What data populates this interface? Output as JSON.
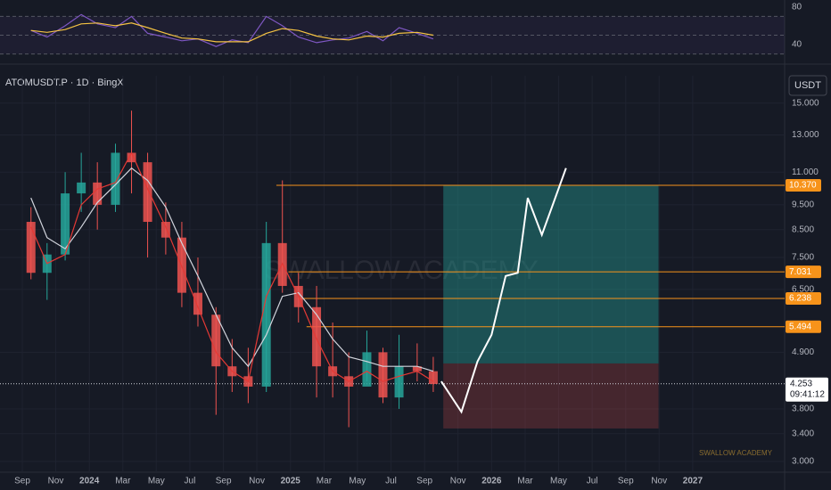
{
  "ui": {
    "symbol": "ATOMUSDT.P · 1D · BingX",
    "currency": "USDT",
    "watermark": "SWALLOW ACADEMY",
    "footer_brand": "SWALLOW ACADEMY",
    "countdown": "09:41:12"
  },
  "chart_data": [
    {
      "type": "candlestick",
      "log_scale": true,
      "grid": true,
      "xlim": [
        2023.556,
        2027.457
      ],
      "ylim": [
        2.86,
        16.96
      ],
      "x": [
        2023.71,
        2023.79,
        2023.88,
        2023.96,
        2024.04,
        2024.13,
        2024.21,
        2024.29,
        2024.38,
        2024.46,
        2024.54,
        2024.63,
        2024.71,
        2024.79,
        2024.88,
        2024.96,
        2025.04,
        2025.13,
        2025.21,
        2025.29,
        2025.38,
        2025.46,
        2025.54,
        2025.63,
        2025.71
      ],
      "open": [
        8.8,
        7.0,
        7.6,
        10.0,
        10.5,
        9.5,
        12.0,
        11.5,
        8.8,
        8.2,
        6.4,
        5.8,
        4.6,
        4.4,
        4.2,
        8.0,
        6.6,
        6.0,
        4.6,
        4.4,
        4.2,
        4.9,
        4.0,
        4.6,
        4.5
      ],
      "high": [
        9.4,
        8.0,
        11.0,
        12.0,
        11.5,
        12.5,
        14.5,
        12.0,
        9.6,
        8.8,
        7.5,
        6.0,
        5.2,
        5.0,
        8.8,
        10.6,
        7.0,
        6.6,
        5.6,
        4.9,
        5.4,
        5.0,
        5.3,
        5.1,
        4.8
      ],
      "low": [
        6.8,
        6.2,
        7.4,
        9.2,
        8.5,
        9.2,
        10.0,
        7.5,
        7.6,
        6.0,
        5.5,
        3.7,
        4.1,
        3.9,
        4.1,
        6.4,
        5.6,
        4.0,
        4.0,
        3.5,
        4.3,
        3.9,
        3.8,
        4.3,
        4.1
      ],
      "close": [
        7.0,
        7.6,
        10.0,
        10.5,
        9.5,
        12.0,
        11.5,
        8.8,
        8.2,
        6.4,
        5.8,
        4.6,
        4.4,
        4.2,
        8.0,
        6.6,
        6.0,
        4.6,
        4.4,
        4.2,
        4.9,
        4.0,
        4.6,
        4.5,
        4.25
      ],
      "up_color": "#26a69a",
      "down_color": "#ef5350",
      "moving_averages": [
        {
          "color": "#d1d4dc",
          "values": [
            9.8,
            8.2,
            7.8,
            8.6,
            9.6,
            10.4,
            11.2,
            10.6,
            9.4,
            8.0,
            6.9,
            5.8,
            5.0,
            4.6,
            5.3,
            6.3,
            6.4,
            5.8,
            5.2,
            4.8,
            4.7,
            4.6,
            4.6,
            4.6,
            4.5
          ]
        },
        {
          "color": "#e53935",
          "values": [
            8.6,
            7.3,
            7.6,
            9.5,
            10.2,
            10.5,
            12.0,
            10.2,
            8.6,
            7.2,
            6.0,
            4.9,
            4.5,
            4.3,
            6.3,
            7.3,
            6.3,
            5.2,
            4.5,
            4.3,
            4.5,
            4.3,
            4.4,
            4.5,
            4.3
          ]
        }
      ],
      "projection": {
        "color": "#ffffff",
        "x": [
          2025.75,
          2025.85,
          2025.93,
          2026.0,
          2026.07,
          2026.13,
          2026.18,
          2026.25,
          2026.3,
          2026.37
        ],
        "values": [
          4.3,
          3.75,
          4.7,
          5.3,
          6.9,
          7.0,
          9.8,
          8.3,
          9.4,
          11.2
        ]
      },
      "position": {
        "start": 2025.76,
        "end": 2026.83,
        "entry": 4.66,
        "target": 10.37,
        "stop": 3.48
      },
      "levels": [
        {
          "value": 10.37,
          "label": "10.370",
          "from": 2024.93
        },
        {
          "value": 7.031,
          "label": "7.031",
          "from": 2024.99
        },
        {
          "value": 6.238,
          "label": "6.238",
          "from": 2025.04
        },
        {
          "value": 5.494,
          "label": "5.494",
          "from": 2025.08
        }
      ],
      "last_price": 4.253,
      "yticks": [
        {
          "value": 15,
          "label": "15.000"
        },
        {
          "value": 13,
          "label": "13.000"
        },
        {
          "value": 11,
          "label": "11.000"
        },
        {
          "value": 9.5,
          "label": "9.500"
        },
        {
          "value": 8.5,
          "label": "8.500"
        },
        {
          "value": 7.5,
          "label": "7.500"
        },
        {
          "value": 6.5,
          "label": "6.500"
        },
        {
          "value": 4.9,
          "label": "4.900"
        },
        {
          "value": 3.8,
          "label": "3.800"
        },
        {
          "value": 3.4,
          "label": "3.400"
        },
        {
          "value": 3,
          "label": "3.000"
        }
      ],
      "xticks": [
        {
          "value": 2023.667,
          "label": "Sep"
        },
        {
          "value": 2023.833,
          "label": "Nov"
        },
        2024,
        {
          "value": 2024.167,
          "label": "Mar"
        },
        {
          "value": 2024.333,
          "label": "May"
        },
        {
          "value": 2024.5,
          "label": "Jul"
        },
        {
          "value": 2024.667,
          "label": "Sep"
        },
        {
          "value": 2024.833,
          "label": "Nov"
        },
        2025,
        {
          "value": 2025.167,
          "label": "Mar"
        },
        {
          "value": 2025.333,
          "label": "May"
        },
        {
          "value": 2025.5,
          "label": "Jul"
        },
        {
          "value": 2025.667,
          "label": "Sep"
        },
        {
          "value": 2025.833,
          "label": "Nov"
        },
        2026,
        {
          "value": 2026.167,
          "label": "Mar"
        },
        {
          "value": 2026.333,
          "label": "May"
        },
        {
          "value": 2026.5,
          "label": "Jul"
        },
        {
          "value": 2026.667,
          "label": "Sep"
        },
        {
          "value": 2026.833,
          "label": "Nov"
        },
        2027
      ]
    },
    {
      "type": "line",
      "xlim": [
        2023.556,
        2027.457
      ],
      "ylim": [
        23,
        87.4
      ],
      "yticks": [
        80,
        40
      ],
      "levels": [
        70,
        50,
        30
      ],
      "x": [
        2023.71,
        2023.79,
        2023.88,
        2023.96,
        2024.04,
        2024.13,
        2024.21,
        2024.29,
        2024.38,
        2024.46,
        2024.54,
        2024.63,
        2024.71,
        2024.79,
        2024.88,
        2024.96,
        2025.04,
        2025.13,
        2025.21,
        2025.29,
        2025.38,
        2025.46,
        2025.54,
        2025.63,
        2025.71
      ],
      "series": [
        {
          "color": "#7e57c2",
          "values": [
            55,
            48,
            60,
            72,
            62,
            58,
            70,
            52,
            48,
            44,
            46,
            38,
            45,
            42,
            70,
            60,
            48,
            42,
            45,
            47,
            54,
            44,
            58,
            52,
            46
          ]
        },
        {
          "color": "#f5c342",
          "values": [
            55,
            53,
            56,
            62,
            63,
            60,
            63,
            58,
            52,
            47,
            46,
            43,
            43,
            43,
            52,
            57,
            55,
            49,
            46,
            45,
            49,
            48,
            52,
            53,
            50
          ]
        }
      ]
    }
  ]
}
